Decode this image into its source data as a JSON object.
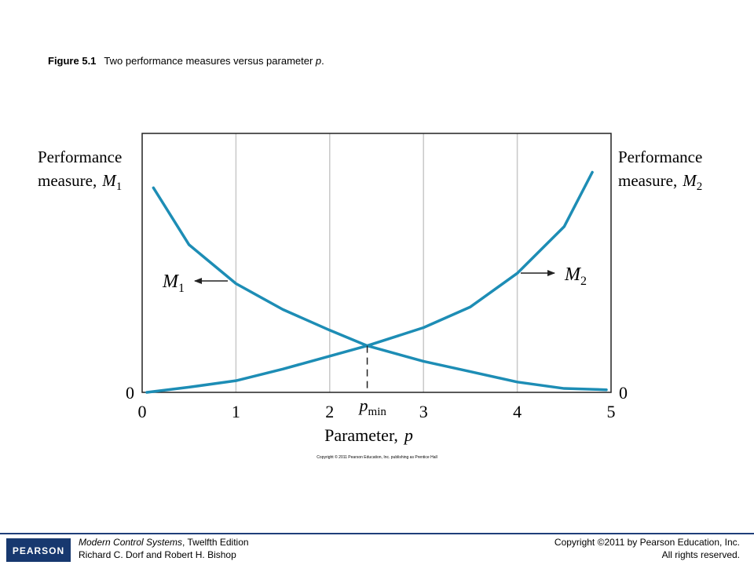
{
  "caption": {
    "label": "Figure 5.1",
    "text": "Two performance measures versus parameter ",
    "variable": "p",
    "end": "."
  },
  "chart_data": {
    "type": "line",
    "ylabel": {
      "lines": [
        "Performance",
        "measure,"
      ],
      "symbol": "M",
      "subscript": "1"
    },
    "y2label": {
      "lines": [
        "Performance",
        "measure,"
      ],
      "symbol": "M",
      "subscript": "2"
    },
    "xlabel": {
      "text": "Parameter,",
      "symbol": "p"
    },
    "xlim": [
      0,
      5
    ],
    "xticks": [
      0,
      1,
      2,
      3,
      4,
      5
    ],
    "ylim": [
      0,
      1
    ],
    "yticks": [
      0
    ],
    "y2lim": [
      0,
      1
    ],
    "y2ticks": [
      0
    ],
    "grid": "x",
    "series": [
      {
        "name": "M",
        "subscript": "1",
        "color": "#1d8db5",
        "x": [
          0.12,
          0.5,
          1,
          1.5,
          2,
          2.4,
          3,
          3.5,
          4,
          4.5,
          4.95
        ],
        "values": [
          0.79,
          0.57,
          0.42,
          0.32,
          0.24,
          0.18,
          0.12,
          0.08,
          0.04,
          0.015,
          0.01
        ]
      },
      {
        "name": "M",
        "subscript": "2",
        "color": "#1d8db5",
        "axis": "y2",
        "x": [
          0.05,
          0.5,
          1,
          1.5,
          2,
          2.4,
          3,
          3.5,
          4,
          4.5,
          4.8
        ],
        "values": [
          0,
          0.02,
          0.045,
          0.09,
          0.14,
          0.18,
          0.25,
          0.33,
          0.46,
          0.64,
          0.85
        ]
      }
    ],
    "marker": {
      "x": 2.4,
      "y": 0.18,
      "label": "p",
      "subscript": "min"
    },
    "credit": "Copyright © 2011 Pearson Education, Inc. publishing as Prentice Hall"
  },
  "footer": {
    "logo": "PEARSON",
    "book": "Modern Control Systems",
    "edition": ", Twelfth Edition",
    "authors": "Richard C. Dorf and Robert H. Bishop",
    "copyright": "Copyright ©2011 by Pearson Education, Inc.",
    "rights": "All rights reserved."
  }
}
